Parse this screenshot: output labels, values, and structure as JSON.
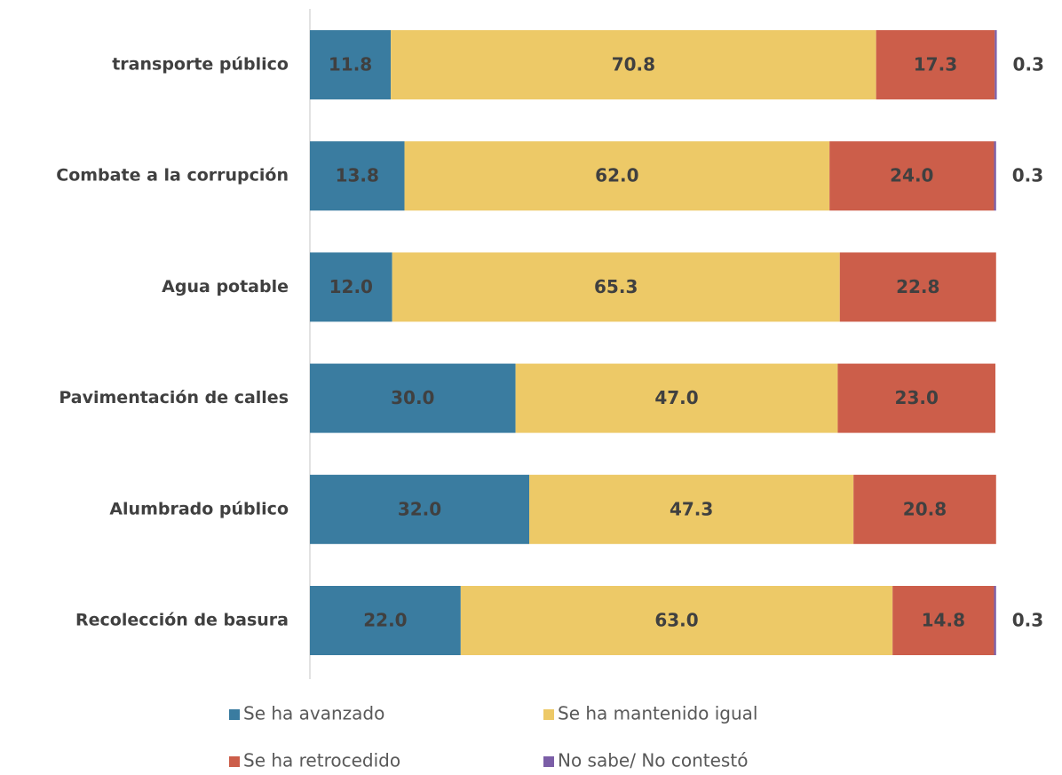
{
  "chart_data": {
    "type": "stacked-bar-horizontal",
    "categories": [
      "transporte público",
      "Combate a la corrupción",
      "Agua potable",
      "Pavimentación de calles",
      "Alumbrado público",
      "Recolección de basura"
    ],
    "xlim": [
      0,
      100
    ],
    "legend": "bottom",
    "series": [
      {
        "name": "Se ha avanzado",
        "color": "#3a7ca0",
        "values": [
          11.8,
          13.8,
          12,
          30,
          32,
          22
        ],
        "value_labels": [
          "11.8",
          "13.8",
          "12.0",
          "30.0",
          "32.0",
          "22.0"
        ]
      },
      {
        "name": "Se ha mantenido igual",
        "color": "#edc967",
        "values": [
          70.8,
          62,
          65.3,
          47,
          47.3,
          63
        ],
        "value_labels": [
          "70.8",
          "62.0",
          "65.3",
          "47.0",
          "47.3",
          "63.0"
        ]
      },
      {
        "name": "Se ha retrocedido",
        "color": "#cc5e4a",
        "values": [
          17.3,
          24,
          22.8,
          23,
          20.8,
          14.8
        ],
        "value_labels": [
          "17.3",
          "24.0",
          "22.8",
          "23.0",
          "20.8",
          "14.8"
        ]
      },
      {
        "name": "No sabe/ No contestó",
        "color": "#7b5ea7",
        "values": [
          0.3,
          0.3,
          null,
          null,
          null,
          0.3
        ]
      }
    ]
  }
}
